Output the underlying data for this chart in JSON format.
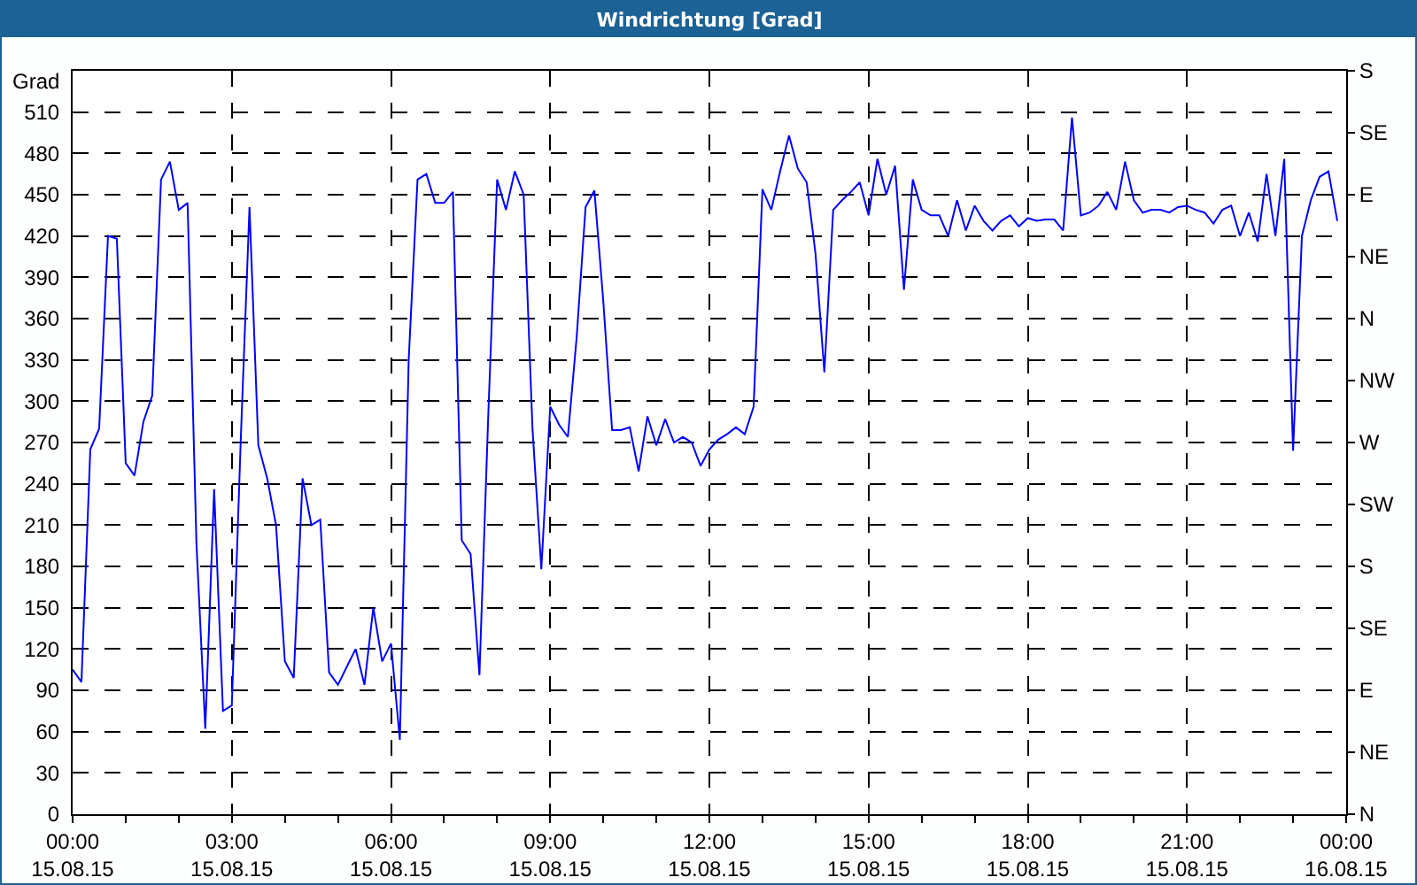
{
  "chart_data": {
    "type": "line",
    "title": "Windrichtung [Grad]",
    "ylabel": "Grad",
    "x": [
      "--08-15T00:00",
      "--08-15T00:10",
      "--08-15T00:20",
      "--08-15T00:30",
      "--08-15T00:40",
      "--08-15T00:50",
      "--08-15T01:00",
      "--08-15T01:10",
      "--08-15T01:20",
      "--08-15T01:30",
      "--08-15T01:40",
      "--08-15T01:50",
      "--08-15T02:00",
      "--08-15T02:10",
      "--08-15T02:20",
      "--08-15T02:30",
      "--08-15T02:40",
      "--08-15T02:50",
      "--08-15T03:00",
      "--08-15T03:10",
      "--08-15T03:20",
      "--08-15T03:30",
      "--08-15T03:40",
      "--08-15T03:50",
      "--08-15T04:00",
      "--08-15T04:10",
      "--08-15T04:20",
      "--08-15T04:30",
      "--08-15T04:40",
      "--08-15T04:50",
      "--08-15T05:00",
      "--08-15T05:10",
      "--08-15T05:20",
      "--08-15T05:30",
      "--08-15T05:40",
      "--08-15T05:50",
      "--08-15T06:00",
      "--08-15T06:10",
      "--08-15T06:20",
      "--08-15T06:30",
      "--08-15T06:40",
      "--08-15T06:50",
      "--08-15T07:00",
      "--08-15T07:10",
      "--08-15T07:20",
      "--08-15T07:30",
      "--08-15T07:40",
      "--08-15T07:50",
      "--08-15T08:00",
      "--08-15T08:10",
      "--08-15T08:20",
      "--08-15T08:30",
      "--08-15T08:40",
      "--08-15T08:50",
      "--08-15T09:00",
      "--08-15T09:10",
      "--08-15T09:20",
      "--08-15T09:30",
      "--08-15T09:40",
      "--08-15T09:50",
      "--08-15T10:00",
      "--08-15T10:10",
      "--08-15T10:20",
      "--08-15T10:30",
      "--08-15T10:40",
      "--08-15T10:50",
      "--08-15T11:00",
      "--08-15T11:10",
      "--08-15T11:20",
      "--08-15T11:30",
      "--08-15T11:40",
      "--08-15T11:50",
      "--08-15T12:00",
      "--08-15T12:10",
      "--08-15T12:20",
      "--08-15T12:30",
      "--08-15T12:40",
      "--08-15T12:50",
      "--08-15T13:00",
      "--08-15T13:10",
      "--08-15T13:20",
      "--08-15T13:30",
      "--08-15T13:40",
      "--08-15T13:50",
      "--08-15T14:00",
      "--08-15T14:10",
      "--08-15T14:20",
      "--08-15T14:30",
      "--08-15T14:40",
      "--08-15T14:50",
      "--08-15T15:00",
      "--08-15T15:10",
      "--08-15T15:20",
      "--08-15T15:30",
      "--08-15T15:40",
      "--08-15T15:50",
      "--08-15T16:00",
      "--08-15T16:10",
      "--08-15T16:20",
      "--08-15T16:30",
      "--08-15T16:40",
      "--08-15T16:50",
      "--08-15T17:00",
      "--08-15T17:10",
      "--08-15T17:20",
      "--08-15T17:30",
      "--08-15T17:40",
      "--08-15T17:50",
      "--08-15T18:00",
      "--08-15T18:10",
      "--08-15T18:20",
      "--08-15T18:30",
      "--08-15T18:40",
      "--08-15T18:50",
      "--08-15T19:00",
      "--08-15T19:10",
      "--08-15T19:20",
      "--08-15T19:30",
      "--08-15T19:40",
      "--08-15T19:50",
      "--08-15T20:00",
      "--08-15T20:10",
      "--08-15T20:20",
      "--08-15T20:30",
      "--08-15T20:40",
      "--08-15T20:50",
      "--08-15T21:00",
      "--08-15T21:10",
      "--08-15T21:20",
      "--08-15T21:30",
      "--08-15T21:40",
      "--08-15T21:50",
      "--08-15T22:00",
      "--08-15T22:10",
      "--08-15T22:20",
      "--08-15T22:30",
      "--08-15T22:40",
      "--08-15T22:50",
      "--08-15T23:00",
      "--08-15T23:10",
      "--08-15T23:20",
      "--08-15T23:30",
      "--08-15T23:40",
      "--08-15T23:50"
    ],
    "series": [
      {
        "color": "#0000ff",
        "values": [
          105,
          96,
          265,
          280,
          420,
          418,
          255,
          246,
          285,
          304,
          461,
          474,
          439,
          444,
          197,
          62,
          236,
          75,
          79,
          270,
          441,
          268,
          244,
          210,
          111,
          99,
          244,
          210,
          214,
          103,
          94,
          107,
          120,
          94,
          150,
          111,
          124,
          54,
          330,
          461,
          465,
          444,
          444,
          452,
          199,
          189,
          101,
          290,
          461,
          439,
          467,
          450,
          280,
          178,
          296,
          283,
          274,
          347,
          441,
          453,
          373,
          279,
          279,
          281,
          249,
          289,
          268,
          287,
          270,
          274,
          270,
          253,
          265,
          272,
          276,
          281,
          276,
          296,
          454,
          439,
          467,
          493,
          469,
          459,
          407,
          321,
          439,
          446,
          452,
          459,
          435,
          476,
          450,
          471,
          381,
          461,
          439,
          435,
          435,
          420,
          446,
          424,
          442,
          431,
          424,
          431,
          435,
          427,
          433,
          431,
          432,
          432,
          424,
          506,
          435,
          437,
          442,
          452,
          439,
          474,
          446,
          437,
          439,
          439,
          437,
          441,
          442,
          439,
          437,
          429,
          439,
          442,
          420,
          437,
          416,
          465,
          420,
          476,
          264,
          420,
          446,
          463,
          467,
          431
        ]
      }
    ],
    "xlim": [
      "--08-15T00:00",
      "--08-16T00:00"
    ],
    "xticks": [
      {
        "value": "--08-15T00:00",
        "label": "00:00\n15.08.15"
      },
      {
        "value": "--08-15T01:00",
        "label": null
      },
      {
        "value": "--08-15T02:00",
        "label": null
      },
      {
        "value": "--08-15T03:00",
        "label": "03:00\n15.08.15"
      },
      {
        "value": "--08-15T04:00",
        "label": null
      },
      {
        "value": "--08-15T05:00",
        "label": null
      },
      {
        "value": "--08-15T06:00",
        "label": "06:00\n15.08.15"
      },
      {
        "value": "--08-15T07:00",
        "label": null
      },
      {
        "value": "--08-15T08:00",
        "label": null
      },
      {
        "value": "--08-15T09:00",
        "label": "09:00\n15.08.15"
      },
      {
        "value": "--08-15T10:00",
        "label": null
      },
      {
        "value": "--08-15T11:00",
        "label": null
      },
      {
        "value": "--08-15T12:00",
        "label": "12:00\n15.08.15"
      },
      {
        "value": "--08-15T13:00",
        "label": null
      },
      {
        "value": "--08-15T14:00",
        "label": null
      },
      {
        "value": "--08-15T15:00",
        "label": "15:00\n15.08.15"
      },
      {
        "value": "--08-15T16:00",
        "label": null
      },
      {
        "value": "--08-15T17:00",
        "label": null
      },
      {
        "value": "--08-15T18:00",
        "label": "18:00\n15.08.15"
      },
      {
        "value": "--08-15T19:00",
        "label": null
      },
      {
        "value": "--08-15T20:00",
        "label": null
      },
      {
        "value": "--08-15T21:00",
        "label": "21:00\n15.08.15"
      },
      {
        "value": "--08-15T22:00",
        "label": null
      },
      {
        "value": "--08-15T23:00",
        "label": null
      },
      {
        "value": "--08-16T00:00",
        "label": "00:00\n16.08.15"
      }
    ],
    "ylim": [
      0,
      540
    ],
    "yticks": [
      0,
      30,
      60,
      90,
      120,
      150,
      180,
      210,
      240,
      270,
      300,
      330,
      360,
      390,
      420,
      450,
      480,
      510
    ],
    "y2_categories": [
      "S",
      "SE",
      "E",
      "NE",
      "N",
      "NW",
      "W",
      "SW",
      "S",
      "SE",
      "E",
      "NE",
      "N"
    ],
    "grid": true,
    "marker": "none",
    "line_style": "solid"
  }
}
